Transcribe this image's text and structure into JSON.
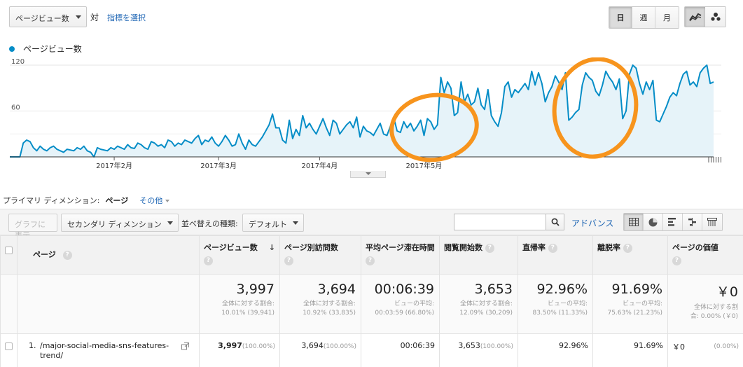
{
  "toolbar": {
    "metric_select": "ページビュー数",
    "vs_label": "対",
    "choose_metric": "指標を選択",
    "periods": [
      "日",
      "週",
      "月"
    ],
    "active_period": "日"
  },
  "legend": {
    "label": "ページビュー数",
    "color": "#058dc7"
  },
  "chart_data": {
    "type": "area",
    "series": [
      {
        "name": "ページビュー数",
        "color": "#058dc7",
        "values": [
          0,
          0,
          0,
          0,
          18,
          22,
          20,
          12,
          8,
          14,
          10,
          8,
          12,
          14,
          10,
          8,
          6,
          10,
          9,
          8,
          12,
          10,
          14,
          8,
          6,
          0,
          12,
          10,
          9,
          8,
          12,
          10,
          14,
          12,
          10,
          16,
          12,
          11,
          18,
          16,
          12,
          10,
          20,
          18,
          14,
          16,
          12,
          22,
          20,
          14,
          18,
          16,
          22,
          20,
          18,
          24,
          28,
          16,
          22,
          20,
          26,
          18,
          14,
          20,
          28,
          22,
          14,
          16,
          30,
          18,
          10,
          22,
          16,
          14,
          20,
          26,
          34,
          42,
          56,
          38,
          38,
          22,
          18,
          48,
          24,
          36,
          28,
          54,
          38,
          44,
          36,
          30,
          40,
          50,
          38,
          28,
          48,
          44,
          30,
          36,
          42,
          46,
          38,
          52,
          26,
          40,
          34,
          32,
          28,
          36,
          44,
          30,
          28,
          40,
          52,
          34,
          32,
          46,
          38,
          44,
          34,
          40,
          48,
          28,
          50,
          46,
          36,
          42,
          104,
          84,
          98,
          90,
          54,
          58,
          98,
          72,
          82,
          68,
          72,
          90,
          68,
          62,
          88,
          54,
          46,
          40,
          58,
          92,
          98,
          78,
          88,
          84,
          90,
          96,
          88,
          112,
          94,
          110,
          96,
          72,
          84,
          92,
          106,
          98,
          88,
          110,
          48,
          52,
          58,
          62,
          94,
          110,
          104,
          100,
          86,
          80,
          94,
          112,
          104,
          98,
          88,
          102,
          50,
          60,
          108,
          120,
          116,
          96,
          82,
          98,
          88,
          100,
          48,
          46,
          56,
          66,
          78,
          84,
          80,
          96,
          108,
          112,
          94,
          98,
          92,
          110,
          116,
          120,
          96,
          98
        ],
        "note_ignored": ""
      }
    ],
    "x_tick_labels": [
      "2017年2月",
      "2017年3月",
      "2017年4月",
      "2017年5月"
    ],
    "x_tick_positions": [
      31,
      62,
      92,
      123
    ],
    "y_tick_labels": [
      "120",
      "60"
    ],
    "ylim": [
      0,
      120
    ],
    "grid": true,
    "legend": "top-left",
    "annotation_color": "#f7941d"
  },
  "dimension": {
    "label": "プライマリ ディメンション:",
    "active": "ページ",
    "other": "その他"
  },
  "controls": {
    "plot_rows": "グラフに表示",
    "secondary_dimension": "セカンダリ ディメンション",
    "sort_label": "並べ替えの種類:",
    "sort_value": "デフォルト",
    "search_placeholder": "",
    "advanced": "アドバンス"
  },
  "table": {
    "headers": [
      {
        "label": "ページ"
      },
      {
        "label": "ページビュー数"
      },
      {
        "label": "ページ別訪問数"
      },
      {
        "label": "平均ページ滞在時間"
      },
      {
        "label": "閲覧開始数"
      },
      {
        "label": "直帰率"
      },
      {
        "label": "離脱率"
      },
      {
        "label": "ページの価値"
      }
    ],
    "totals": [
      {
        "value": "3,997",
        "sub1": "全体に対する割合:",
        "sub2": "10.01% (39,941)"
      },
      {
        "value": "3,694",
        "sub1": "全体に対する割合:",
        "sub2": "10.92% (33,835)"
      },
      {
        "value": "00:06:39",
        "sub1": "ビューの平均:",
        "sub2": "00:03:59 (66.80%)"
      },
      {
        "value": "3,653",
        "sub1": "全体に対する割合:",
        "sub2": "12.09% (30,209)"
      },
      {
        "value": "92.96%",
        "sub1": "ビューの平均:",
        "sub2": "83.50% (11.33%)"
      },
      {
        "value": "91.69%",
        "sub1": "ビューの平均:",
        "sub2": "75.63% (21.23%)"
      },
      {
        "value": "￥0",
        "sub1": "全体に対する割",
        "sub2": "合: 0.00% (￥0)"
      }
    ],
    "rows": [
      {
        "index": "1.",
        "page": "/major-social-media-sns-features-trend/",
        "pageviews": "3,997",
        "pageviews_pct": "(100.00%)",
        "unique": "3,694",
        "unique_pct": "(100.00%)",
        "avg_time": "00:06:39",
        "entrances": "3,653",
        "entrances_pct": "(100.00%)",
        "bounce": "92.96%",
        "exit": "91.69%",
        "value": "￥0",
        "value_pct": "(0.00%)"
      }
    ]
  }
}
